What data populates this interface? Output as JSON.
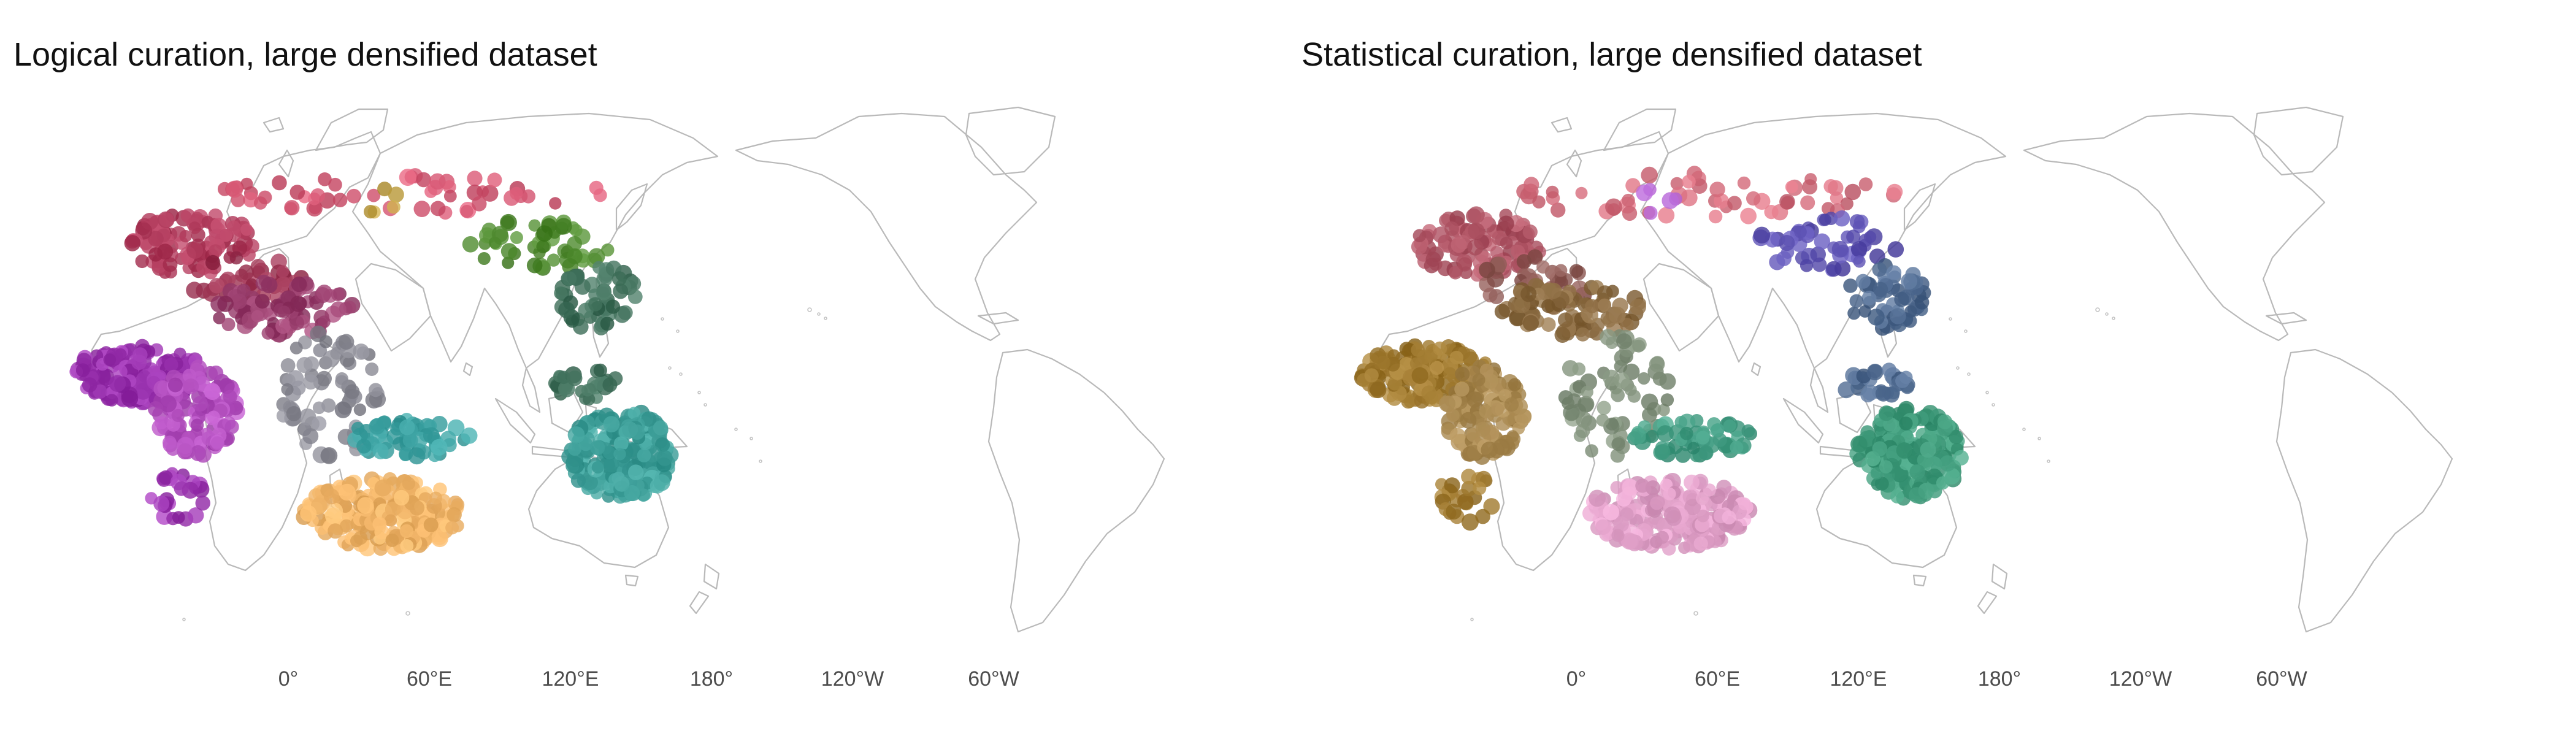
{
  "panels": [
    {
      "title": "Logical curation, large densified dataset",
      "scheme": "logical",
      "axis_ticks": [
        "0°",
        "60°E",
        "120°E",
        "180°",
        "120°W",
        "60°W"
      ]
    },
    {
      "title": "Statistical curation, large densified dataset",
      "scheme": "statistical",
      "axis_ticks": [
        "0°",
        "60°E",
        "120°E",
        "180°",
        "120°W",
        "60°W"
      ]
    }
  ],
  "region_colors": {
    "logical": {
      "europe": "#b03a5b",
      "north_eurasia": "#d35470",
      "middle_east": "#9b3251",
      "south_asia": "#9a3f6e",
      "sub_saharan_africa": "#9b34b0",
      "east_africa": "#b450c0",
      "southeast_asia": "#868690",
      "new_guinea": "#3aa0a0",
      "australia": "#f0b468",
      "north_america": "#4f8a2f",
      "central_america": "#3f6f5a",
      "south_america": "#3fa09a",
      "northeast_asia": "#c0a040"
    },
    "statistical": {
      "europe": "#b05565",
      "north_eurasia": "#d36a7a",
      "middle_east": "#8e5a55",
      "south_asia": "#8a6a40",
      "sub_saharan_africa": "#a07a30",
      "east_africa": "#a88850",
      "southeast_asia": "#80907a",
      "new_guinea": "#3f9a80",
      "australia": "#e0a0c8",
      "north_america": "#5a4fb0",
      "central_america": "#4f6a90",
      "south_america": "#3f9a7a",
      "northeast_asia": "#b060d0"
    }
  }
}
